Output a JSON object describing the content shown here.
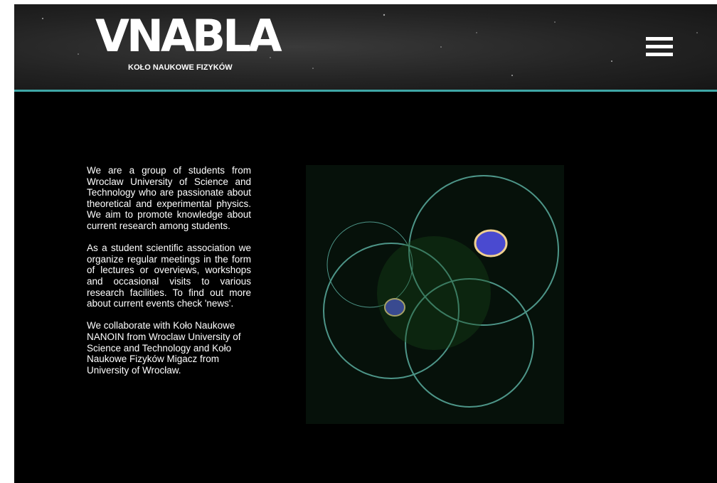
{
  "header": {
    "logo": "VNABLA",
    "subtitle": "KOŁO NAUKOWE FIZYKÓW"
  },
  "content": {
    "paragraphs": [
      "We are a group of students from Wroclaw University of Science and Technology who are passionate about theoretical and experimental physics. We aim to promote knowledge about current research among students.",
      "As a student scientific association we organize regular meetings in the form of lectures or overviews, workshops and occasional visits to various research facilities. To find out more about current events check 'news'.",
      "We collaborate with Koło Naukowe NANOIN from Wroclaw University of Science and Technology and Koło Naukowe Fizyków Migacz from University of Wrocław."
    ]
  }
}
